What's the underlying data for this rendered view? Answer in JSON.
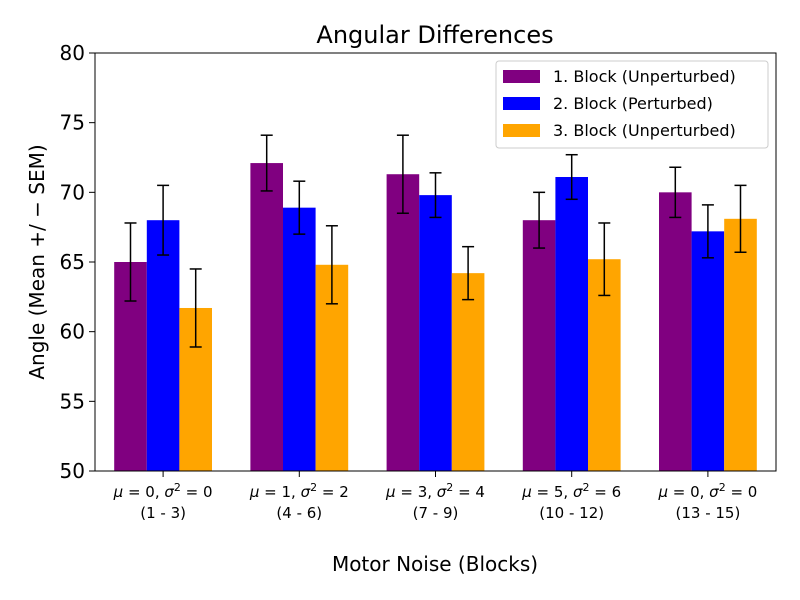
{
  "chart_data": {
    "type": "bar",
    "title": "Angular Differences",
    "xlabel": "Motor Noise (Blocks)",
    "ylabel": "Angle (Mean +/ − SEM)",
    "ylim": [
      50,
      80
    ],
    "yticks": [
      50,
      55,
      60,
      65,
      70,
      75,
      80
    ],
    "grid": false,
    "legend_position": "top-right",
    "categories": [
      {
        "mu": "0",
        "sigma": "0",
        "blocks": "(1 - 3)"
      },
      {
        "mu": "1",
        "sigma": "2",
        "blocks": "(4 - 6)"
      },
      {
        "mu": "3",
        "sigma": "4",
        "blocks": "(7 - 9)"
      },
      {
        "mu": "5",
        "sigma": "6",
        "blocks": "(10 - 12)"
      },
      {
        "mu": "0",
        "sigma": "0",
        "blocks": "(13 - 15)"
      }
    ],
    "series": [
      {
        "name": "1. Block (Unperturbed)",
        "color": "#800080",
        "values": [
          65.0,
          72.1,
          71.3,
          68.0,
          70.0
        ],
        "sem": [
          2.8,
          2.0,
          2.8,
          2.0,
          1.8
        ]
      },
      {
        "name": "2. Block (Perturbed)",
        "color": "#0000ff",
        "values": [
          68.0,
          68.9,
          69.8,
          71.1,
          67.2
        ],
        "sem": [
          2.5,
          1.9,
          1.6,
          1.6,
          1.9
        ]
      },
      {
        "name": "3. Block (Unperturbed)",
        "color": "#ffa500",
        "values": [
          61.7,
          64.8,
          64.2,
          65.2,
          68.1
        ],
        "sem": [
          2.8,
          2.8,
          1.9,
          2.6,
          2.4
        ]
      }
    ]
  }
}
